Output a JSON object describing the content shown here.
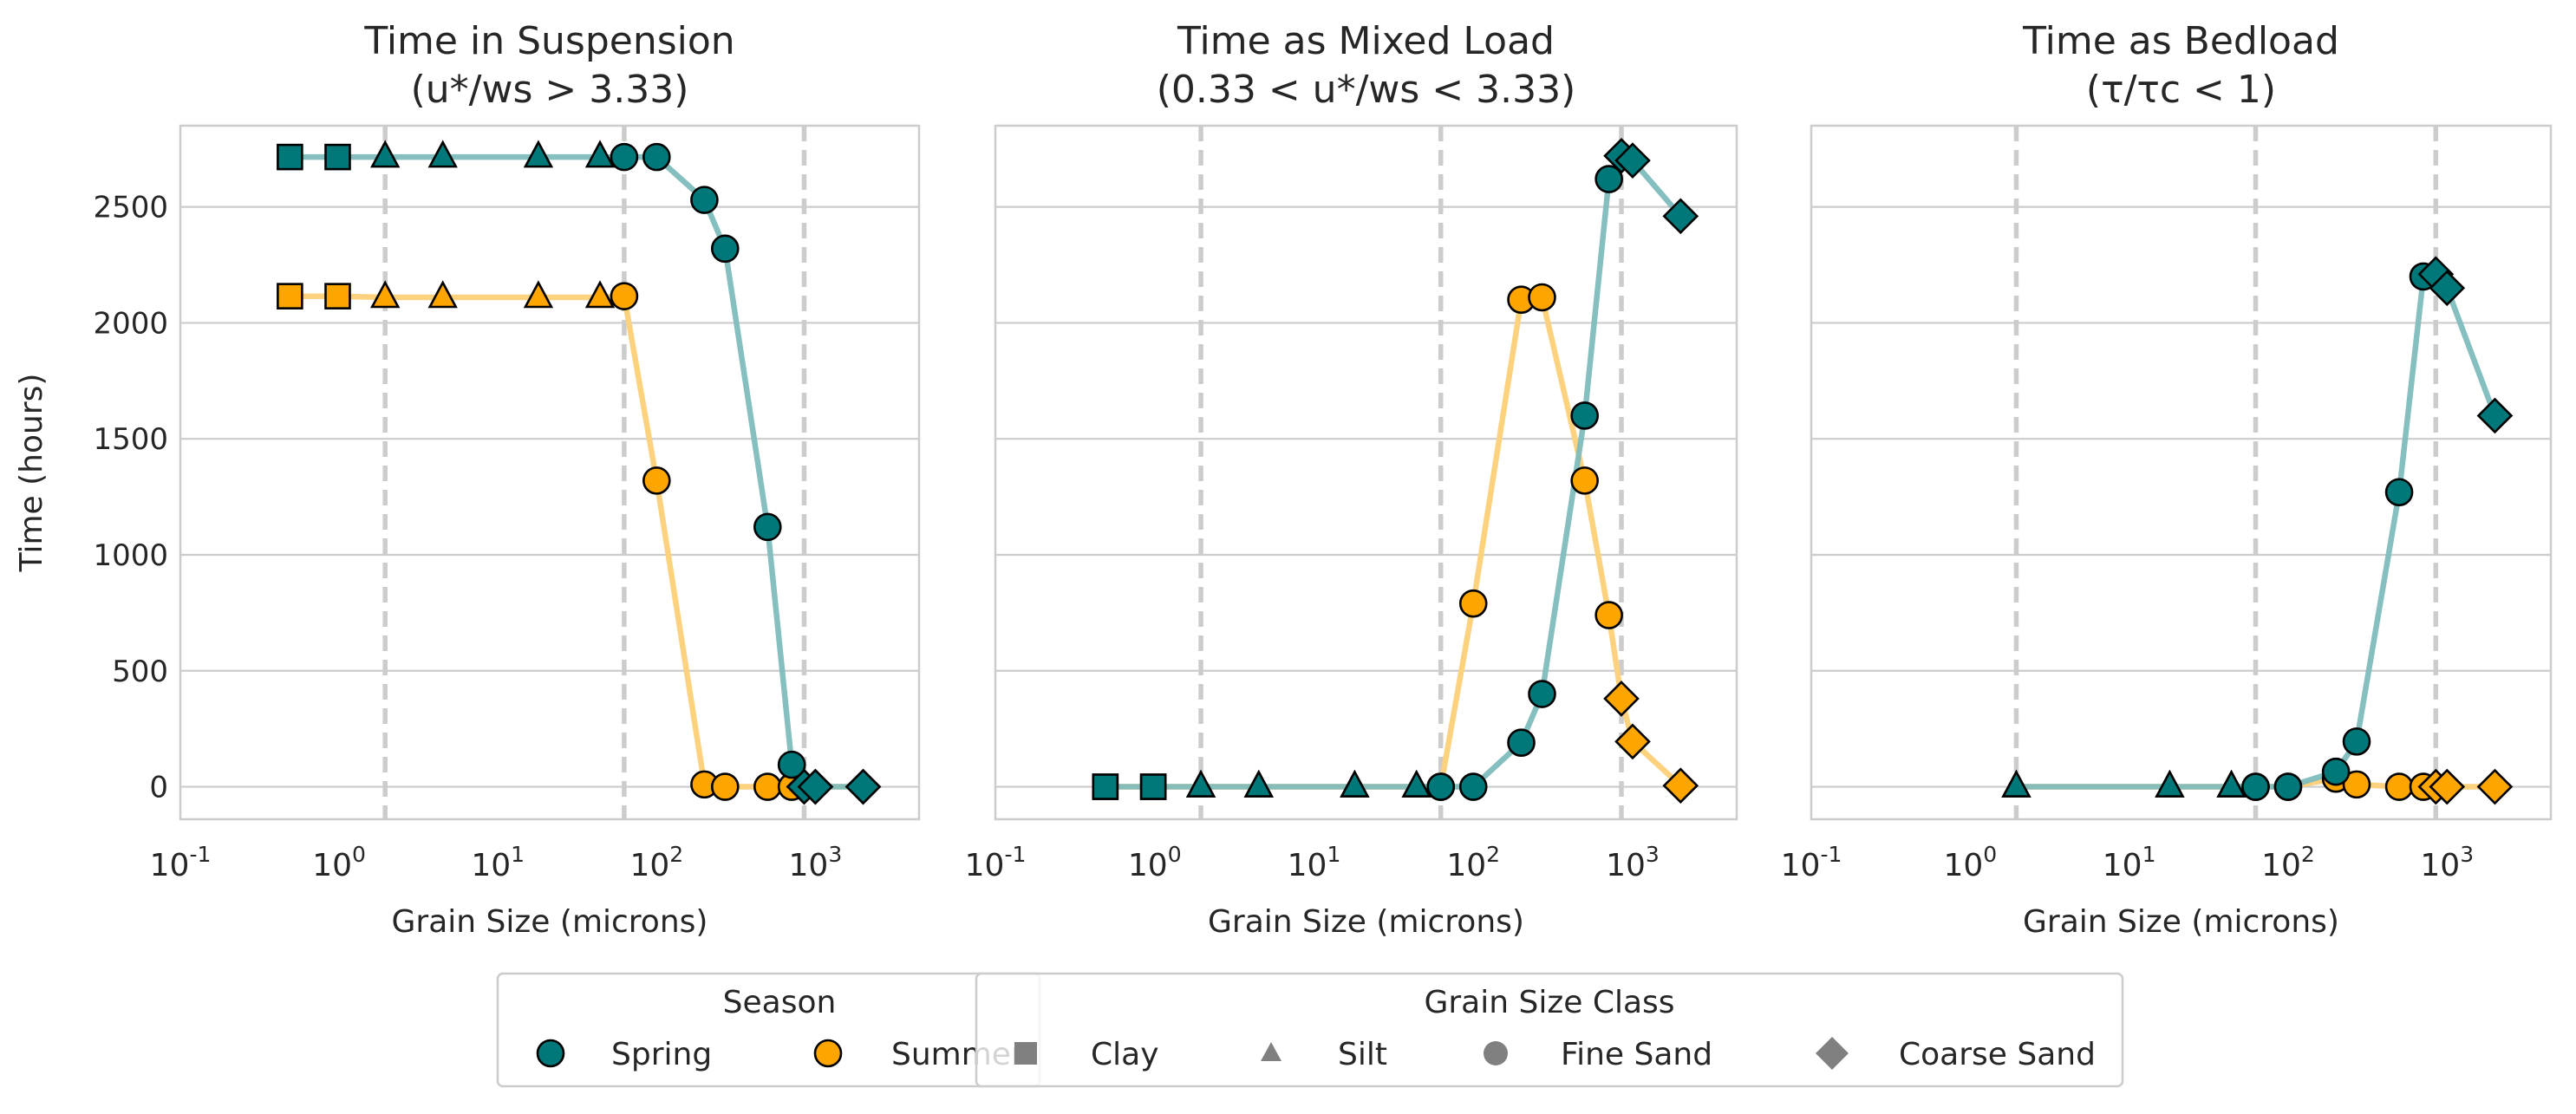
{
  "figure": {
    "ylabel": "Time (hours)",
    "xlabel": "Grain Size (microns)",
    "legend_season": {
      "title": "Season",
      "entries": [
        {
          "label": "Spring",
          "color": "#00787a"
        },
        {
          "label": "Summer",
          "color": "#ffa500"
        }
      ]
    },
    "legend_grain": {
      "title": "Grain Size Class",
      "entries": [
        {
          "label": "Clay",
          "marker": "square"
        },
        {
          "label": "Silt",
          "marker": "triangle"
        },
        {
          "label": "Fine Sand",
          "marker": "circle"
        },
        {
          "label": "Coarse Sand",
          "marker": "diamond"
        }
      ]
    }
  },
  "colors": {
    "spring": "#00787a",
    "summer": "#ffa500",
    "spring_line": "#7fbcbc",
    "summer_line": "#fcd27f",
    "grid": "#cccccc",
    "vline": "#cccccc"
  },
  "chart_data": [
    {
      "type": "line",
      "title_line1": "Time in Suspension",
      "title_line2": "(u*/ws > 3.33)",
      "xlabel": "Grain Size (microns)",
      "ylabel": "Time (hours)",
      "xscale": "log",
      "xlim": [
        0.1,
        4500
      ],
      "ylim": [
        -140,
        2850
      ],
      "xticks": [
        "10^-1",
        "10^0",
        "10^1",
        "10^2",
        "10^3"
      ],
      "yticks": [
        0,
        500,
        1000,
        1500,
        2000,
        2500
      ],
      "grid": true,
      "vlines": [
        1.95,
        62.5,
        850
      ],
      "series": [
        {
          "name": "Spring",
          "points": [
            {
              "x": 0.49,
              "y": 2715,
              "m": "square"
            },
            {
              "x": 0.98,
              "y": 2715,
              "m": "square"
            },
            {
              "x": 1.95,
              "y": 2715,
              "m": "triangle"
            },
            {
              "x": 4.5,
              "y": 2715,
              "m": "triangle"
            },
            {
              "x": 18,
              "y": 2715,
              "m": "triangle"
            },
            {
              "x": 44,
              "y": 2715,
              "m": "triangle"
            },
            {
              "x": 62.5,
              "y": 2715,
              "m": "circle"
            },
            {
              "x": 100,
              "y": 2715,
              "m": "circle"
            },
            {
              "x": 200,
              "y": 2530,
              "m": "circle"
            },
            {
              "x": 270,
              "y": 2320,
              "m": "circle"
            },
            {
              "x": 500,
              "y": 1120,
              "m": "circle"
            },
            {
              "x": 710,
              "y": 95,
              "m": "circle"
            },
            {
              "x": 850,
              "y": 0,
              "m": "diamond"
            },
            {
              "x": 1000,
              "y": 0,
              "m": "diamond"
            },
            {
              "x": 2000,
              "y": 0,
              "m": "diamond"
            }
          ]
        },
        {
          "name": "Summer",
          "points": [
            {
              "x": 0.49,
              "y": 2115,
              "m": "square"
            },
            {
              "x": 0.98,
              "y": 2115,
              "m": "square"
            },
            {
              "x": 1.95,
              "y": 2110,
              "m": "triangle"
            },
            {
              "x": 4.5,
              "y": 2110,
              "m": "triangle"
            },
            {
              "x": 18,
              "y": 2110,
              "m": "triangle"
            },
            {
              "x": 44,
              "y": 2110,
              "m": "triangle"
            },
            {
              "x": 62.5,
              "y": 2115,
              "m": "circle"
            },
            {
              "x": 100,
              "y": 1320,
              "m": "circle"
            },
            {
              "x": 200,
              "y": 10,
              "m": "circle"
            },
            {
              "x": 270,
              "y": 0,
              "m": "circle"
            },
            {
              "x": 500,
              "y": 0,
              "m": "circle"
            },
            {
              "x": 710,
              "y": 0,
              "m": "circle"
            },
            {
              "x": 850,
              "y": 0,
              "m": "diamond"
            },
            {
              "x": 1000,
              "y": 0,
              "m": "diamond"
            },
            {
              "x": 2000,
              "y": 0,
              "m": "diamond"
            }
          ]
        }
      ]
    },
    {
      "type": "line",
      "title_line1": "Time as Mixed Load",
      "title_line2": "(0.33 < u*/ws < 3.33)",
      "xlabel": "Grain Size (microns)",
      "ylabel": "",
      "xscale": "log",
      "xlim": [
        0.1,
        4500
      ],
      "ylim": [
        -140,
        2850
      ],
      "xticks": [
        "10^-1",
        "10^0",
        "10^1",
        "10^2",
        "10^3"
      ],
      "yticks": [
        0,
        500,
        1000,
        1500,
        2000,
        2500
      ],
      "grid": true,
      "vlines": [
        1.95,
        62.5,
        850
      ],
      "series": [
        {
          "name": "Spring",
          "points": [
            {
              "x": 0.49,
              "y": 0,
              "m": "square"
            },
            {
              "x": 0.98,
              "y": 0,
              "m": "square"
            },
            {
              "x": 1.95,
              "y": 0,
              "m": "triangle"
            },
            {
              "x": 4.5,
              "y": 0,
              "m": "triangle"
            },
            {
              "x": 18,
              "y": 0,
              "m": "triangle"
            },
            {
              "x": 44,
              "y": 0,
              "m": "triangle"
            },
            {
              "x": 62.5,
              "y": 0,
              "m": "circle"
            },
            {
              "x": 100,
              "y": 0,
              "m": "circle"
            },
            {
              "x": 200,
              "y": 190,
              "m": "circle"
            },
            {
              "x": 270,
              "y": 400,
              "m": "circle"
            },
            {
              "x": 500,
              "y": 1600,
              "m": "circle"
            },
            {
              "x": 710,
              "y": 2620,
              "m": "circle"
            },
            {
              "x": 850,
              "y": 2720,
              "m": "diamond"
            },
            {
              "x": 1000,
              "y": 2700,
              "m": "diamond"
            },
            {
              "x": 2000,
              "y": 2460,
              "m": "diamond"
            }
          ]
        },
        {
          "name": "Summer",
          "points": [
            {
              "x": 0.49,
              "y": 0,
              "m": "square"
            },
            {
              "x": 0.98,
              "y": 0,
              "m": "square"
            },
            {
              "x": 1.95,
              "y": 0,
              "m": "triangle"
            },
            {
              "x": 4.5,
              "y": 0,
              "m": "triangle"
            },
            {
              "x": 18,
              "y": 0,
              "m": "triangle"
            },
            {
              "x": 44,
              "y": 0,
              "m": "triangle"
            },
            {
              "x": 62.5,
              "y": 0,
              "m": "circle"
            },
            {
              "x": 100,
              "y": 790,
              "m": "circle"
            },
            {
              "x": 200,
              "y": 2100,
              "m": "circle"
            },
            {
              "x": 270,
              "y": 2110,
              "m": "circle"
            },
            {
              "x": 500,
              "y": 1320,
              "m": "circle"
            },
            {
              "x": 710,
              "y": 740,
              "m": "circle"
            },
            {
              "x": 850,
              "y": 380,
              "m": "diamond"
            },
            {
              "x": 1000,
              "y": 195,
              "m": "diamond"
            },
            {
              "x": 2000,
              "y": 5,
              "m": "diamond"
            }
          ]
        }
      ]
    },
    {
      "type": "line",
      "title_line1": "Time as Bedload",
      "title_line2": "(τ/τc < 1)",
      "xlabel": "Grain Size (microns)",
      "ylabel": "",
      "xscale": "log",
      "xlim": [
        0.1,
        4500
      ],
      "ylim": [
        -140,
        2850
      ],
      "xticks": [
        "10^-1",
        "10^0",
        "10^1",
        "10^2",
        "10^3"
      ],
      "yticks": [
        0,
        500,
        1000,
        1500,
        2000,
        2500
      ],
      "grid": true,
      "vlines": [
        1.95,
        62.5,
        850
      ],
      "series": [
        {
          "name": "Spring",
          "points": [
            {
              "x": 1.95,
              "y": 0,
              "m": "triangle"
            },
            {
              "x": 18,
              "y": 0,
              "m": "triangle"
            },
            {
              "x": 44,
              "y": 0,
              "m": "triangle"
            },
            {
              "x": 62.5,
              "y": 0,
              "m": "circle"
            },
            {
              "x": 100,
              "y": 0,
              "m": "circle"
            },
            {
              "x": 200,
              "y": 65,
              "m": "circle"
            },
            {
              "x": 270,
              "y": 195,
              "m": "circle"
            },
            {
              "x": 500,
              "y": 1270,
              "m": "circle"
            },
            {
              "x": 710,
              "y": 2200,
              "m": "circle"
            },
            {
              "x": 850,
              "y": 2210,
              "m": "diamond"
            },
            {
              "x": 1000,
              "y": 2150,
              "m": "diamond"
            },
            {
              "x": 2000,
              "y": 1600,
              "m": "diamond"
            }
          ]
        },
        {
          "name": "Summer",
          "points": [
            {
              "x": 1.95,
              "y": 0,
              "m": "triangle"
            },
            {
              "x": 18,
              "y": 0,
              "m": "triangle"
            },
            {
              "x": 44,
              "y": 0,
              "m": "triangle"
            },
            {
              "x": 62.5,
              "y": 0,
              "m": "circle"
            },
            {
              "x": 100,
              "y": 0,
              "m": "circle"
            },
            {
              "x": 200,
              "y": 35,
              "m": "circle"
            },
            {
              "x": 270,
              "y": 10,
              "m": "circle"
            },
            {
              "x": 500,
              "y": 0,
              "m": "circle"
            },
            {
              "x": 710,
              "y": 0,
              "m": "circle"
            },
            {
              "x": 850,
              "y": 0,
              "m": "diamond"
            },
            {
              "x": 1000,
              "y": 0,
              "m": "diamond"
            },
            {
              "x": 2000,
              "y": 0,
              "m": "diamond"
            }
          ]
        }
      ]
    }
  ]
}
